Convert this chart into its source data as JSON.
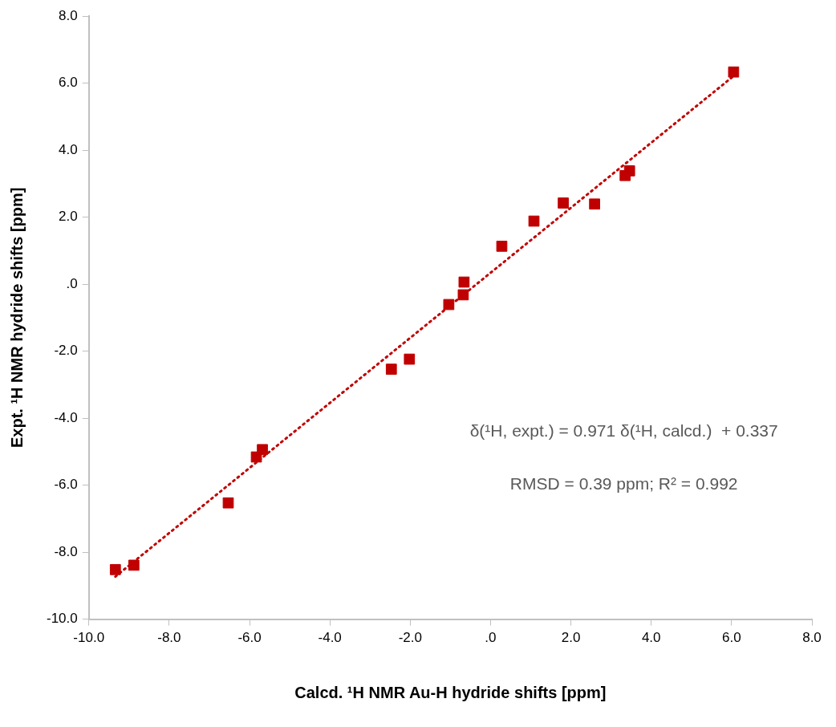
{
  "chart_data": {
    "type": "scatter",
    "xlabel": "Calcd. ¹H NMR Au-H hydride shifts [ppm]",
    "ylabel": "Expt. ¹H NMR hydride shifts [ppm]",
    "xlim": [
      -10,
      8
    ],
    "ylim": [
      -10,
      8
    ],
    "xticks": [
      {
        "value": -10,
        "label": "-10.0"
      },
      {
        "value": -8,
        "label": "-8.0"
      },
      {
        "value": -6,
        "label": "-6.0"
      },
      {
        "value": -4,
        "label": "-4.0"
      },
      {
        "value": -2,
        "label": "-2.0"
      },
      {
        "value": 0,
        "label": ".0"
      },
      {
        "value": 2,
        "label": "2.0"
      },
      {
        "value": 4,
        "label": "4.0"
      },
      {
        "value": 6,
        "label": "6.0"
      },
      {
        "value": 8,
        "label": "8.0"
      }
    ],
    "yticks": [
      {
        "value": -10,
        "label": "-10.0"
      },
      {
        "value": -8,
        "label": "-8.0"
      },
      {
        "value": -6,
        "label": "-6.0"
      },
      {
        "value": -4,
        "label": "-4.0"
      },
      {
        "value": -2,
        "label": "-2.0"
      },
      {
        "value": 0,
        "label": ".0"
      },
      {
        "value": 2,
        "label": "2.0"
      },
      {
        "value": 4,
        "label": "4.0"
      },
      {
        "value": 6,
        "label": "6.0"
      },
      {
        "value": 8,
        "label": "8.0"
      }
    ],
    "grid": false,
    "legend": false,
    "series": [
      {
        "marker": "square",
        "color": "#c00000",
        "x": [
          -9.34,
          -8.88,
          -6.53,
          -5.83,
          -5.68,
          -2.47,
          -2.02,
          -1.04,
          -0.68,
          -0.66,
          0.28,
          1.08,
          1.81,
          2.59,
          3.35,
          3.46,
          6.05
        ],
        "values": [
          -8.52,
          -8.39,
          -6.53,
          -5.16,
          -4.94,
          -2.54,
          -2.24,
          -0.61,
          -0.32,
          0.06,
          1.13,
          1.88,
          2.42,
          2.39,
          3.24,
          3.38,
          6.33
        ]
      },
      {
        "type": "line",
        "marker": "none",
        "color": "#c00000",
        "line_style": "dotted",
        "x": [
          -9.34,
          6.05
        ],
        "values": [
          -8.73,
          6.21
        ]
      }
    ],
    "annotations": [
      "δ(¹H, expt.) = 0.971 δ(¹H, calcd.)  + 0.337",
      "RMSD = 0.39 ppm; R² = 0.992"
    ]
  }
}
